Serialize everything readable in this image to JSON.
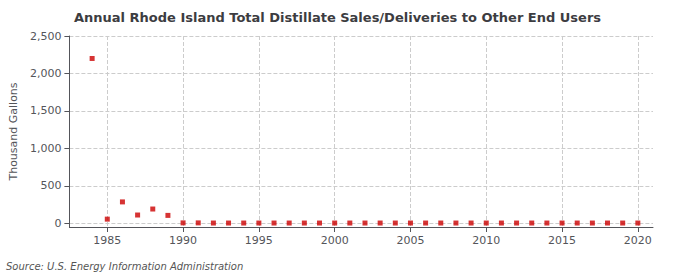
{
  "chart_data": {
    "type": "scatter",
    "title": "Annual Rhode Island Total Distillate Sales/Deliveries to Other End Users",
    "ylabel": "Thousand Gallons",
    "annotation": "Source: U.S. Energy Information Administration",
    "x": [
      1984,
      1985,
      1986,
      1987,
      1988,
      1989,
      1990,
      1991,
      1992,
      1993,
      1994,
      1995,
      1996,
      1997,
      1998,
      1999,
      2000,
      2001,
      2002,
      2003,
      2004,
      2005,
      2006,
      2007,
      2008,
      2009,
      2010,
      2011,
      2012,
      2013,
      2014,
      2015,
      2016,
      2017,
      2018,
      2019,
      2020
    ],
    "values": [
      2200,
      55,
      285,
      110,
      190,
      105,
      5,
      5,
      3,
      3,
      3,
      3,
      3,
      3,
      3,
      3,
      3,
      3,
      3,
      3,
      3,
      3,
      3,
      3,
      3,
      3,
      3,
      3,
      3,
      3,
      3,
      3,
      3,
      3,
      3,
      3,
      3
    ],
    "color": "#cc0000",
    "marker": "square",
    "grid": true,
    "xlim": [
      1982.5,
      2021
    ],
    "xticks": [
      1985,
      1990,
      1995,
      2000,
      2005,
      2010,
      2015,
      2020
    ],
    "ylim": [
      -50,
      2500
    ],
    "yticks": [
      0,
      500,
      {
        "value": 1000,
        "label": "1,000"
      },
      {
        "value": 1500,
        "label": "1,500"
      },
      {
        "value": 2000,
        "label": "2,000"
      },
      {
        "value": 2500,
        "label": "2,500"
      }
    ]
  }
}
